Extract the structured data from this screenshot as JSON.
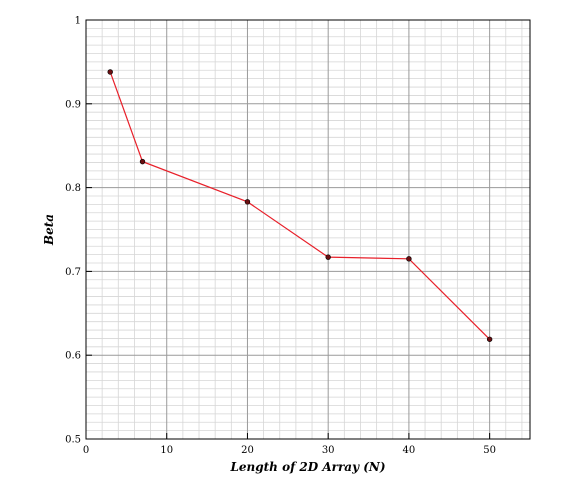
{
  "chart_data": {
    "type": "line",
    "title": "",
    "xlabel": "Length of 2D Array (N)",
    "ylabel": "Beta",
    "xlim": [
      0,
      55
    ],
    "ylim": [
      0.5,
      1
    ],
    "x_ticks": [
      0,
      10,
      20,
      30,
      40,
      50
    ],
    "x_tick_labels": [
      "0",
      "10",
      "20",
      "30",
      "40",
      "50"
    ],
    "y_ticks": [
      0.5,
      0.6,
      0.7,
      0.8,
      0.9,
      1
    ],
    "y_tick_labels": [
      "0.5",
      "0.6",
      "0.7",
      "0.8",
      "0.9",
      "1"
    ],
    "grid": true,
    "minor_grid": true,
    "series": [
      {
        "color": "#e8202a",
        "marker_color": "#6b0f12",
        "points": [
          {
            "x": 3,
            "y": 0.938
          },
          {
            "x": 7,
            "y": 0.831
          },
          {
            "x": 20,
            "y": 0.783
          },
          {
            "x": 30,
            "y": 0.717
          },
          {
            "x": 40,
            "y": 0.715
          },
          {
            "x": 50,
            "y": 0.619
          }
        ]
      }
    ]
  }
}
